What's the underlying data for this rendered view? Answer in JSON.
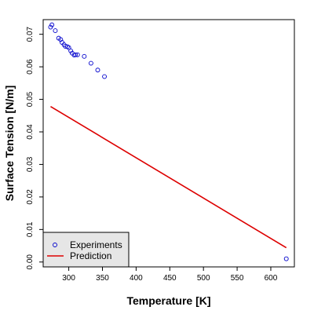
{
  "chart_data": {
    "type": "scatter",
    "title": "",
    "xlabel": "Temperature [K]",
    "ylabel": "Surface Tension [N/m]",
    "xlim": [
      262,
      635
    ],
    "ylim": [
      -0.0015,
      0.0745
    ],
    "x_ticks": [
      "300",
      "350",
      "400",
      "450",
      "500",
      "550",
      "600"
    ],
    "x_tick_values": [
      300,
      350,
      400,
      450,
      500,
      550,
      600
    ],
    "y_ticks": [
      "0.00",
      "0.01",
      "0.02",
      "0.03",
      "0.04",
      "0.05",
      "0.06",
      "0.07"
    ],
    "y_tick_values": [
      0.0,
      0.01,
      0.02,
      0.03,
      0.04,
      0.05,
      0.06,
      0.07
    ],
    "grid": false,
    "legend_position": "bottom-left",
    "series": [
      {
        "name": "Experiments",
        "kind": "points",
        "marker": "open-circle",
        "color": "#0000cc",
        "points": [
          [
            273,
            0.0722
          ],
          [
            275,
            0.0729
          ],
          [
            280,
            0.0711
          ],
          [
            285,
            0.0688
          ],
          [
            288,
            0.0684
          ],
          [
            290,
            0.0675
          ],
          [
            293,
            0.0668
          ],
          [
            295,
            0.0663
          ],
          [
            298,
            0.0662
          ],
          [
            300,
            0.0659
          ],
          [
            303,
            0.0649
          ],
          [
            305,
            0.0642
          ],
          [
            308,
            0.0636
          ],
          [
            310,
            0.0637
          ],
          [
            313,
            0.0637
          ],
          [
            323,
            0.0632
          ],
          [
            333,
            0.0611
          ],
          [
            343,
            0.059
          ],
          [
            353,
            0.057
          ],
          [
            623,
            0.001
          ]
        ]
      },
      {
        "name": "Prediction",
        "kind": "line",
        "color": "#dd0000",
        "points": [
          [
            273,
            0.0478
          ],
          [
            623,
            0.0044
          ]
        ]
      }
    ]
  }
}
